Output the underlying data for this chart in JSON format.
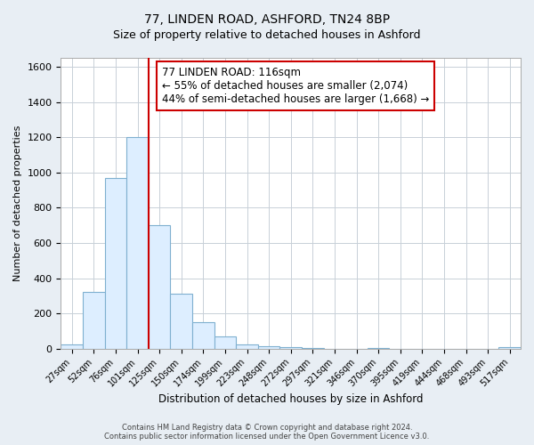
{
  "title": "77, LINDEN ROAD, ASHFORD, TN24 8BP",
  "subtitle": "Size of property relative to detached houses in Ashford",
  "xlabel": "Distribution of detached houses by size in Ashford",
  "ylabel": "Number of detached properties",
  "bin_labels": [
    "27sqm",
    "52sqm",
    "76sqm",
    "101sqm",
    "125sqm",
    "150sqm",
    "174sqm",
    "199sqm",
    "223sqm",
    "248sqm",
    "272sqm",
    "297sqm",
    "321sqm",
    "346sqm",
    "370sqm",
    "395sqm",
    "419sqm",
    "444sqm",
    "468sqm",
    "493sqm",
    "517sqm"
  ],
  "bar_heights": [
    25,
    320,
    970,
    1200,
    700,
    310,
    150,
    70,
    25,
    12,
    8,
    5,
    0,
    0,
    5,
    0,
    0,
    0,
    0,
    0,
    10
  ],
  "bar_color": "#ddeeff",
  "bar_edge_color": "#7fb0d0",
  "vline_color": "#cc0000",
  "annotation_text": "77 LINDEN ROAD: 116sqm\n← 55% of detached houses are smaller (2,074)\n44% of semi-detached houses are larger (1,668) →",
  "annotation_box_color": "#ffffff",
  "annotation_box_edge": "#cc0000",
  "ylim": [
    0,
    1650
  ],
  "yticks": [
    0,
    200,
    400,
    600,
    800,
    1000,
    1200,
    1400,
    1600
  ],
  "footer_text": "Contains HM Land Registry data © Crown copyright and database right 2024.\nContains public sector information licensed under the Open Government Licence v3.0.",
  "bg_color": "#e8eef4",
  "plot_bg_color": "#ffffff",
  "grid_color": "#c8d0d8"
}
